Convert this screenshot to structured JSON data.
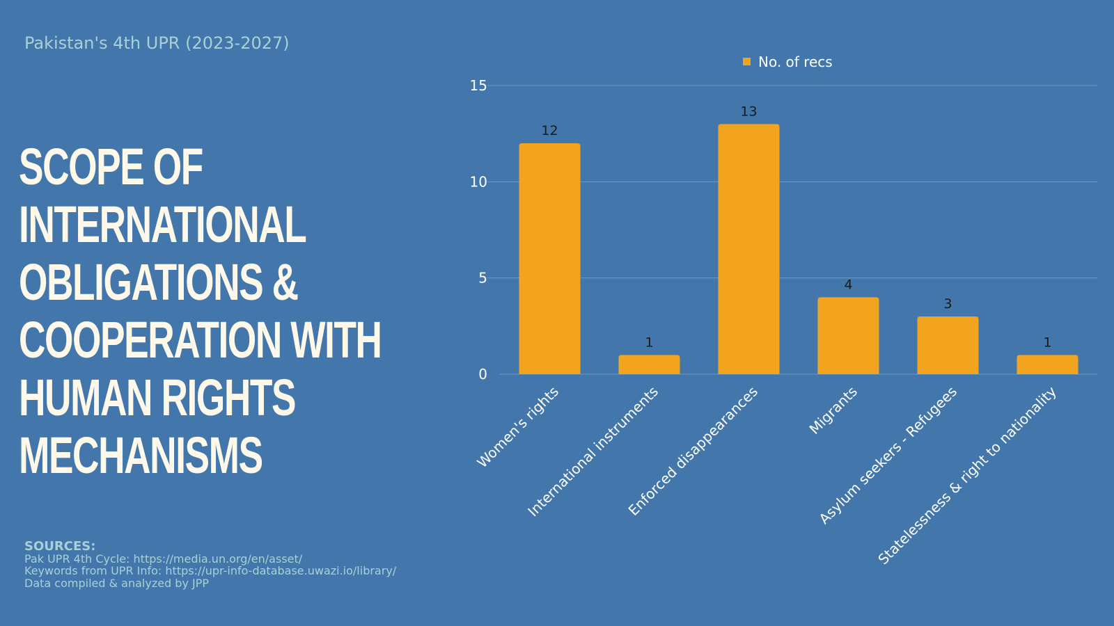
{
  "header": {
    "subtitle": "Pakistan's 4th UPR (2023-2027)",
    "title_lines": [
      "SCOPE OF",
      "INTERNATIONAL",
      "OBLIGATIONS &",
      "COOPERATION WITH",
      "HUMAN RIGHTS",
      "MECHANISMS"
    ]
  },
  "sources": {
    "heading": "SOURCES:",
    "lines": [
      "Pak UPR 4th Cycle: https://media.un.org/en/asset/",
      "Keywords from UPR Info: https://upr-info-database.uwazi.io/library/",
      "Data compiled & analyzed by JPP"
    ]
  },
  "colors": {
    "background": "#4377ab",
    "bar": "#f2a41f",
    "title_text": "#fdf8ea",
    "subtitle_text": "#a8d0d6",
    "axis_text": "#ffffff",
    "data_label": "#1a1a1a",
    "gridline": "#6b97c2"
  },
  "chart_data": {
    "type": "bar",
    "categories": [
      "Women's rights",
      "International instruments",
      "Enforced disappearances",
      "Migrants",
      "Asylum seekers - Refugees",
      "Statelessness & right to nationality"
    ],
    "series": [
      {
        "name": "No. of recs",
        "values": [
          12,
          1,
          13,
          4,
          3,
          1
        ]
      }
    ],
    "ylim": [
      0,
      15
    ],
    "yticks": [
      0,
      5,
      10,
      15
    ],
    "grid": true,
    "legend": "top-center",
    "data_labels": true,
    "xlabel": "",
    "ylabel": ""
  }
}
